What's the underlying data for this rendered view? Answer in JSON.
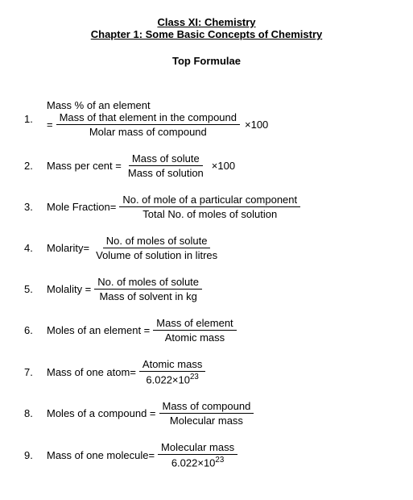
{
  "header": {
    "line1": "Class XI: Chemistry",
    "line2": "Chapter 1: Some Basic Concepts of Chemistry"
  },
  "subtitle": "Top Formulae",
  "formulas": [
    {
      "num": "1.",
      "lhs_line1": "Mass % of an element",
      "lhs_line2": "=",
      "frac_top": "Mass of that element in the compound",
      "frac_bot": "Molar mass of compound",
      "tail": "×100"
    },
    {
      "num": "2.",
      "lhs": "Mass per cent =",
      "frac_top": "Mass of solute",
      "frac_bot": "Mass of solution",
      "tail": "×100"
    },
    {
      "num": "3.",
      "lhs": "Mole Fraction=",
      "frac_top": "No. of mole of a particular component",
      "frac_bot": "Total No. of moles of solution",
      "tail": ""
    },
    {
      "num": "4.",
      "lhs": "Molarity=",
      "frac_top": "No. of moles of solute",
      "frac_bot": "Volume of solution in litres",
      "tail": ""
    },
    {
      "num": "5.",
      "lhs": "Molality =",
      "frac_top": "No. of moles of solute",
      "frac_bot": "Mass of solvent in kg",
      "tail": ""
    },
    {
      "num": "6.",
      "lhs": "Moles of an element =",
      "frac_top": "Mass of element",
      "frac_bot": "Atomic mass",
      "tail": ""
    },
    {
      "num": "7.",
      "lhs": "Mass of one atom=",
      "frac_top": "Atomic mass",
      "frac_bot_html": "6.022×10<sup>23</sup>",
      "tail": ""
    },
    {
      "num": "8.",
      "lhs": "Moles of a compound =",
      "frac_top": "Mass of compound",
      "frac_bot": "Molecular mass",
      "tail": ""
    },
    {
      "num": "9.",
      "lhs": "Mass of one molecule=",
      "frac_top": "Molecular mass",
      "frac_bot_html": "6.022×10<sup>23</sup>",
      "tail": ""
    }
  ]
}
